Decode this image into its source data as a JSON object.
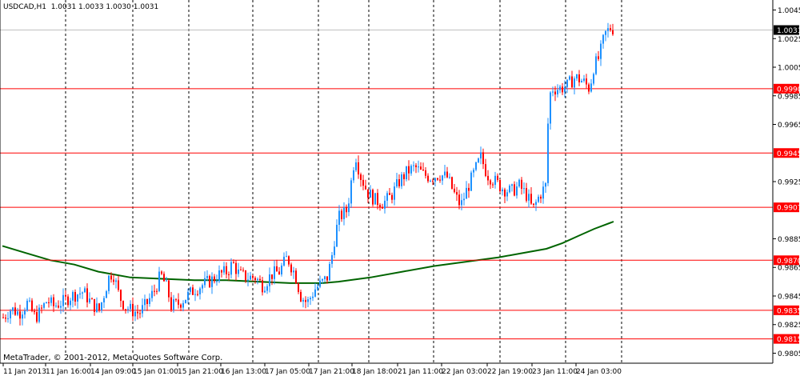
{
  "header": {
    "symbol": "USDCAD,H1",
    "ohlc": "1.0031 1.0033 1.0030 1.0031"
  },
  "footer": {
    "copyright": "MetaTrader, © 2001-2012, MetaQuotes Software Corp."
  },
  "colors": {
    "up": "#1e90ff",
    "down": "#ff0000",
    "ma": "#006400",
    "hline": "#ff0000",
    "grid": "#000000",
    "bg": "#ffffff",
    "current_bg": "#000000",
    "current_text": "#ffffff"
  },
  "chart_data": {
    "type": "candlestick",
    "symbol": "USDCAD",
    "timeframe": "H1",
    "ylim": [
      0.9798,
      1.0052
    ],
    "y_ticks": [
      "1.0045",
      "1.0025",
      "1.0005",
      "0.9985",
      "0.9965",
      "0.9925",
      "0.9885",
      "0.9865",
      "0.9845",
      "0.9825",
      "0.9805"
    ],
    "x_labels": [
      "11 Jan 2013",
      "11 Jan 16:00",
      "14 Jan 09:00",
      "15 Jan 01:00",
      "15 Jan 21:00",
      "16 Jan 13:00",
      "17 Jan 05:00",
      "17 Jan 21:00",
      "18 Jan 18:00",
      "21 Jan 11:00",
      "22 Jan 03:00",
      "22 Jan 19:00",
      "23 Jan 11:00",
      "24 Jan 03:00"
    ],
    "grid": true,
    "horizontal_levels": [
      "0.9990",
      "0.9945",
      "0.9907",
      "0.9870",
      "0.9835",
      "0.9815"
    ],
    "current_price": "1.0031",
    "close_path": [
      [
        0,
        0.983
      ],
      [
        10,
        0.9836
      ],
      [
        20,
        0.9833
      ],
      [
        30,
        0.984
      ],
      [
        40,
        0.983
      ],
      [
        45,
        0.9833
      ],
      [
        55,
        0.9842
      ],
      [
        63,
        0.9838
      ],
      [
        75,
        0.9841
      ],
      [
        85,
        0.9845
      ],
      [
        100,
        0.9848
      ],
      [
        110,
        0.984
      ],
      [
        120,
        0.9835
      ],
      [
        128,
        0.985
      ],
      [
        132,
        0.9858
      ],
      [
        137,
        0.9862
      ],
      [
        145,
        0.9845
      ],
      [
        152,
        0.9838
      ],
      [
        160,
        0.9835
      ],
      [
        170,
        0.9833
      ],
      [
        180,
        0.984
      ],
      [
        190,
        0.985
      ],
      [
        197,
        0.986
      ],
      [
        205,
        0.985
      ],
      [
        210,
        0.9838
      ],
      [
        220,
        0.984
      ],
      [
        230,
        0.9845
      ],
      [
        240,
        0.985
      ],
      [
        250,
        0.9853
      ],
      [
        260,
        0.9856
      ],
      [
        270,
        0.986
      ],
      [
        280,
        0.9862
      ],
      [
        287,
        0.9868
      ],
      [
        295,
        0.986
      ],
      [
        305,
        0.9858
      ],
      [
        315,
        0.9858
      ],
      [
        325,
        0.9852
      ],
      [
        335,
        0.986
      ],
      [
        345,
        0.9862
      ],
      [
        355,
        0.9872
      ],
      [
        365,
        0.986
      ],
      [
        372,
        0.9845
      ],
      [
        380,
        0.984
      ],
      [
        390,
        0.985
      ],
      [
        400,
        0.9855
      ],
      [
        405,
        0.9858
      ],
      [
        410,
        0.987
      ],
      [
        415,
        0.9888
      ],
      [
        420,
        0.99
      ],
      [
        430,
        0.9905
      ],
      [
        435,
        0.9925
      ],
      [
        440,
        0.9945
      ],
      [
        446,
        0.993
      ],
      [
        455,
        0.9918
      ],
      [
        465,
        0.9912
      ],
      [
        475,
        0.991
      ],
      [
        485,
        0.9915
      ],
      [
        495,
        0.9925
      ],
      [
        505,
        0.9932
      ],
      [
        515,
        0.9935
      ],
      [
        525,
        0.993
      ],
      [
        535,
        0.9928
      ],
      [
        545,
        0.993
      ],
      [
        555,
        0.9928
      ],
      [
        565,
        0.9915
      ],
      [
        572,
        0.9908
      ],
      [
        580,
        0.992
      ],
      [
        590,
        0.9933
      ],
      [
        597,
        0.9942
      ],
      [
        605,
        0.993
      ],
      [
        615,
        0.9925
      ],
      [
        625,
        0.992
      ],
      [
        635,
        0.9918
      ],
      [
        645,
        0.9922
      ],
      [
        655,
        0.9915
      ],
      [
        662,
        0.9905
      ],
      [
        670,
        0.9915
      ],
      [
        678,
        0.9922
      ],
      [
        682,
        0.998
      ],
      [
        685,
        0.999
      ],
      [
        695,
        0.999
      ],
      [
        705,
        0.9992
      ],
      [
        715,
        0.9998
      ],
      [
        725,
        0.9995
      ],
      [
        733,
        0.999
      ],
      [
        738,
        1.0005
      ],
      [
        745,
        1.0012
      ],
      [
        752,
        1.0028
      ],
      [
        760,
        1.0033
      ],
      [
        764,
        1.0031
      ]
    ],
    "ma_series": [
      [
        0,
        0.988
      ],
      [
        30,
        0.9875
      ],
      [
        60,
        0.987
      ],
      [
        90,
        0.9867
      ],
      [
        120,
        0.9862
      ],
      [
        160,
        0.9858
      ],
      [
        200,
        0.9857
      ],
      [
        240,
        0.9856
      ],
      [
        280,
        0.9856
      ],
      [
        320,
        0.9855
      ],
      [
        360,
        0.9854
      ],
      [
        400,
        0.9854
      ],
      [
        420,
        0.9855
      ],
      [
        460,
        0.9858
      ],
      [
        500,
        0.9862
      ],
      [
        540,
        0.9866
      ],
      [
        580,
        0.9869
      ],
      [
        620,
        0.9872
      ],
      [
        650,
        0.9875
      ],
      [
        680,
        0.9878
      ],
      [
        700,
        0.9882
      ],
      [
        720,
        0.9887
      ],
      [
        740,
        0.9892
      ],
      [
        764,
        0.9897
      ]
    ]
  }
}
